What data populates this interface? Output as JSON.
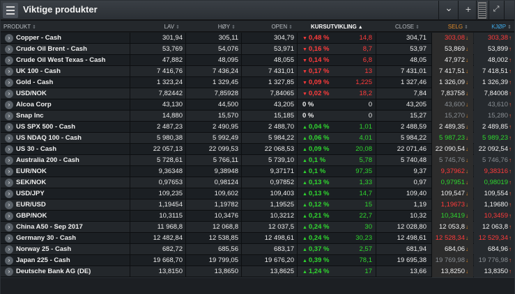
{
  "window": {
    "title": "Viktige produkter"
  },
  "icons": {
    "menu": "hamburger-menu-icon",
    "collapse": "chevron-down-icon",
    "add": "plus-icon",
    "expand": "expand-diagonal-icon"
  },
  "titlebar": {
    "chevron": "⌄",
    "plus": "+",
    "expand": "⤢"
  },
  "columns": {
    "product": "PRODUKT",
    "low": "LAV",
    "high": "HØY",
    "open": "OPEN",
    "change": "KURSUTVIKLING",
    "close": "CLOSE",
    "sell": "SELG",
    "buy": "KJØP"
  },
  "colors": {
    "negative": "#ff3b3b",
    "positive": "#2fd82f",
    "sell_header": "#e08a2a",
    "buy_header": "#3fa9e6"
  },
  "rows": [
    {
      "name": "Copper - Cash",
      "low": "301,94",
      "high": "305,11",
      "open": "304,79",
      "dir": "down",
      "pct": "0,48 %",
      "abs": "14,8",
      "close": "304,71",
      "sell": "303,08",
      "buy": "303,38"
    },
    {
      "name": "Crude Oil Brent - Cash",
      "low": "53,769",
      "high": "54,076",
      "open": "53,971",
      "dir": "down",
      "pct": "0,16 %",
      "abs": "8,7",
      "close": "53,97",
      "sell": "53,869",
      "buy": "53,899"
    },
    {
      "name": "Crude Oil West Texas - Cash",
      "low": "47,882",
      "high": "48,095",
      "open": "48,055",
      "dir": "down",
      "pct": "0,14 %",
      "abs": "6,8",
      "close": "48,05",
      "sell": "47,972",
      "buy": "48,002"
    },
    {
      "name": "UK 100 - Cash",
      "low": "7 416,76",
      "high": "7 436,24",
      "open": "7 431,01",
      "dir": "down",
      "pct": "0,17 %",
      "abs": "13",
      "close": "7 431,01",
      "sell": "7 417,51",
      "buy": "7 418,51"
    },
    {
      "name": "Gold - Cash",
      "low": "1 323,24",
      "high": "1 329,45",
      "open": "1 327,85",
      "dir": "down",
      "pct": "0,09 %",
      "abs": "1,225",
      "close": "1 327,46",
      "sell": "1 326,09",
      "buy": "1 326,39"
    },
    {
      "name": "USD/NOK",
      "low": "7,82442",
      "high": "7,85928",
      "open": "7,84065",
      "dir": "down",
      "pct": "0,02 %",
      "abs": "18,2",
      "close": "7,84",
      "sell": "7,83758",
      "buy": "7,84008"
    },
    {
      "name": "Alcoa Corp",
      "low": "43,130",
      "high": "44,500",
      "open": "43,205",
      "dir": "none",
      "pct": "0 %",
      "abs": "0",
      "close": "43,205",
      "sell": "43,600",
      "buy": "43,610"
    },
    {
      "name": "Snap Inc",
      "low": "14,880",
      "high": "15,570",
      "open": "15,185",
      "dir": "none",
      "pct": "0 %",
      "abs": "0",
      "close": "15,27",
      "sell": "15,270",
      "buy": "15,280"
    },
    {
      "name": "US SPX 500 - Cash",
      "low": "2 487,23",
      "high": "2 490,95",
      "open": "2 488,70",
      "dir": "up",
      "pct": "0,04 %",
      "abs": "1,01",
      "close": "2 488,59",
      "sell": "2 489,35",
      "buy": "2 489,85"
    },
    {
      "name": "US NDAQ 100 - Cash",
      "low": "5 980,38",
      "high": "5 992,49",
      "open": "5 984,22",
      "dir": "up",
      "pct": "0,06 %",
      "abs": "4,01",
      "close": "5 984,22",
      "sell": "5 987,23",
      "buy": "5 989,23"
    },
    {
      "name": "US 30 - Cash",
      "low": "22 057,13",
      "high": "22 099,53",
      "open": "22 068,53",
      "dir": "up",
      "pct": "0,09 %",
      "abs": "20,08",
      "close": "22 071,46",
      "sell": "22 090,54",
      "buy": "22 092,54"
    },
    {
      "name": "Australia 200 - Cash",
      "low": "5 728,61",
      "high": "5 766,11",
      "open": "5 739,10",
      "dir": "up",
      "pct": "0,1 %",
      "abs": "5,78",
      "close": "5 740,48",
      "sell": "5 745,76",
      "buy": "5 746,76"
    },
    {
      "name": "EUR/NOK",
      "low": "9,36348",
      "high": "9,38948",
      "open": "9,37171",
      "dir": "up",
      "pct": "0,1 %",
      "abs": "97,35",
      "close": "9,37",
      "sell": "9,37962",
      "buy": "9,38316"
    },
    {
      "name": "SEK/NOK",
      "low": "0,97653",
      "high": "0,98124",
      "open": "0,97852",
      "dir": "up",
      "pct": "0,13 %",
      "abs": "1,33",
      "close": "0,97",
      "sell": "0,97951",
      "buy": "0,98019"
    },
    {
      "name": "USD/JPY",
      "low": "109,235",
      "high": "109,602",
      "open": "109,403",
      "dir": "up",
      "pct": "0,13 %",
      "abs": "14,7",
      "close": "109,40",
      "sell": "109,547",
      "buy": "109,554"
    },
    {
      "name": "EUR/USD",
      "low": "1,19454",
      "high": "1,19782",
      "open": "1,19525",
      "dir": "up",
      "pct": "0,12 %",
      "abs": "15",
      "close": "1,19",
      "sell": "1,19673",
      "buy": "1,19680"
    },
    {
      "name": "GBP/NOK",
      "low": "10,3115",
      "high": "10,3476",
      "open": "10,3212",
      "dir": "up",
      "pct": "0,21 %",
      "abs": "22,7",
      "close": "10,32",
      "sell": "10,3419",
      "buy": "10,3459"
    },
    {
      "name": "China A50 - Sep 2017",
      "low": "11 968,8",
      "high": "12 068,8",
      "open": "12 037,5",
      "dir": "up",
      "pct": "0,24 %",
      "abs": "30",
      "close": "12 028,80",
      "sell": "12 053,8",
      "buy": "12 063,8"
    },
    {
      "name": "Germany 30 - Cash",
      "low": "12 482,84",
      "high": "12 538,85",
      "open": "12 498,61",
      "dir": "up",
      "pct": "0,24 %",
      "abs": "30,23",
      "close": "12 498,61",
      "sell": "12 528,34",
      "buy": "12 529,34"
    },
    {
      "name": "Norway 25 - Cash",
      "low": "682,72",
      "high": "685,56",
      "open": "683,17",
      "dir": "up",
      "pct": "0,37 %",
      "abs": "2,57",
      "close": "681,94",
      "sell": "684,06",
      "buy": "684,96"
    },
    {
      "name": "Japan 225 - Cash",
      "low": "19 668,70",
      "high": "19 799,05",
      "open": "19 676,20",
      "dir": "up",
      "pct": "0,39 %",
      "abs": "78,1",
      "close": "19 695,38",
      "sell": "19 769,98",
      "buy": "19 776,98"
    },
    {
      "name": "Deutsche Bank AG (DE)",
      "low": "13,8150",
      "high": "13,8650",
      "open": "13,8625",
      "dir": "up",
      "pct": "1,24 %",
      "abs": "17",
      "close": "13,66",
      "sell": "13,8250",
      "buy": "13,8350"
    }
  ],
  "price_colors": [
    [
      "red",
      "red"
    ],
    [
      "white",
      "white"
    ],
    [
      "white",
      "white"
    ],
    [
      "white",
      "white"
    ],
    [
      "white",
      "white"
    ],
    [
      "white",
      "white"
    ],
    [
      "grey",
      "grey"
    ],
    [
      "grey",
      "grey"
    ],
    [
      "white",
      "white"
    ],
    [
      "green",
      "green"
    ],
    [
      "white",
      "white"
    ],
    [
      "grey",
      "grey"
    ],
    [
      "red",
      "red"
    ],
    [
      "green",
      "green"
    ],
    [
      "white",
      "white"
    ],
    [
      "red",
      "white"
    ],
    [
      "green",
      "red"
    ],
    [
      "white",
      "white"
    ],
    [
      "red",
      "red"
    ],
    [
      "white",
      "white"
    ],
    [
      "grey",
      "grey"
    ],
    [
      "white",
      "white"
    ]
  ]
}
